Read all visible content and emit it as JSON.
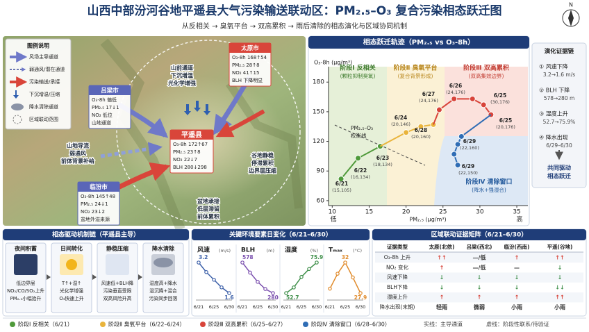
{
  "header": {
    "title": "山西中部汾河谷地平遥县大气污染输送联动区：PM₂.₅–O₃ 复合污染相态跃迁图",
    "subtitle": "从反相关 → 臭氧平台 → 双高累积 → 雨后清除的相态演化与区域协同机制"
  },
  "map": {
    "legend_title": "图例说明",
    "legend": [
      "风场主导通道",
      "弱通风/潜在通道",
      "污染输送/承接",
      "下沉增温/压缩",
      "降水清除通道",
      "区域联动范围"
    ],
    "cities": [
      {
        "name": "太原市",
        "lines": [
          "O₃-8h 168↑54",
          "PM₂.₅ 28↑8",
          "NO₂ 41↑15",
          "BLH 下降明显"
        ]
      },
      {
        "name": "吕梁市",
        "lines": [
          "O₃-8h 偏低",
          "PM₂.₅ 17↓1",
          "NO₂ 低位",
          "山地通道"
        ]
      },
      {
        "name": "平遥县",
        "lines": [
          "O₃-8h 172↑67",
          "PM₂.₅ 23↑8",
          "NO₂ 22↓7",
          "BLH 280↓298"
        ]
      },
      {
        "name": "临汾市",
        "lines": [
          "O₃-8h 145↑48",
          "PM₂.₅ 24↓1",
          "NO₂ 23↓2",
          "盆地外溢来源"
        ]
      }
    ],
    "notes": [
      [
        "山前通道",
        "下沉增温",
        "光化学增强"
      ],
      [
        "山地导流",
        "弱通风",
        "前体背景补给"
      ],
      [
        "谷地静稳",
        "停滞累积",
        "边界层压缩"
      ],
      [
        "盆地承接",
        "低层滞留",
        "前体累积"
      ]
    ],
    "compass": "N"
  },
  "chart_data": [
    {
      "type": "scatter",
      "title": "相态跃迁轨迹（PM₂.₅ vs O₃-8h）",
      "x_label": "PM₂.₅ (μg/m³)",
      "y_label": "O₃-8h (μg/m³)",
      "x_low": "低",
      "x_high": "高",
      "xlim": [
        9.5,
        36.5
      ],
      "xticks": [
        10,
        15,
        20,
        25,
        30,
        35
      ],
      "ylim": [
        55,
        190
      ],
      "yticks": [
        60,
        90,
        120,
        150,
        180
      ],
      "series": [
        {
          "name": "阶段Ⅰ 反相关（6/21）",
          "color": "#4f9a3a",
          "x": [
            11.2,
            13.5,
            16.5
          ],
          "values": [
            82,
            103,
            115
          ]
        },
        {
          "name": "阶段Ⅱ 臭氧平台（6/22–6/24）",
          "color": "#e9b43c",
          "x": [
            20,
            22,
            23.7
          ],
          "values": [
            129,
            135,
            137
          ]
        },
        {
          "name": "阶段Ⅲ 双高累积（6/25–6/27）",
          "color": "#d8443a",
          "x": [
            24.5,
            26.5,
            29,
            30.5,
            31.5
          ],
          "values": [
            152,
            163,
            163,
            157,
            147
          ]
        },
        {
          "name": "阶段Ⅳ 清除窗口（6/28–6/30）",
          "color": "#2f6db5",
          "x": [
            27.5,
            27,
            26.5,
            27
          ],
          "values": [
            125,
            117,
            107,
            96
          ]
        }
      ],
      "phases": [
        {
          "title": "阶段Ⅰ 反相关",
          "note": "(颗粒抑制臭氧)"
        },
        {
          "title": "阶段Ⅱ 臭氧平台",
          "note": "(复合背景形成)"
        },
        {
          "title": "阶段Ⅲ 双高累积",
          "note": "(双高集效边界)"
        },
        {
          "title": "阶段Ⅳ 清除窗口",
          "note": "(降水+强湿合)"
        }
      ],
      "tradeoff_label": [
        "PM₂.₅–O₃",
        "权衡线"
      ],
      "annotations": [
        {
          "date": "6/21",
          "coords": "(15,105)"
        },
        {
          "date": "6/22",
          "coords": "(16,134)"
        },
        {
          "date": "6/23",
          "coords": "(18,134)"
        },
        {
          "date": "6/24",
          "coords": "(20,146)"
        },
        {
          "date": "6/27",
          "coords": "(24,176)"
        },
        {
          "date": "6/28",
          "coords": "(20,160)"
        },
        {
          "date": "6/26",
          "coords": "(24,176)"
        },
        {
          "date": "6/25",
          "coords": "(30,176)"
        },
        {
          "date": "6/25",
          "coords": "(20,176)"
        },
        {
          "date": "6/29",
          "coords": "(22,160)"
        },
        {
          "date": "6/29",
          "coords": "(22,150)"
        }
      ]
    },
    {
      "type": "line",
      "title": "风速",
      "unit": "(m/s)",
      "color": "#3b5fa8",
      "categories": [
        "6/21",
        null,
        "6/25",
        null,
        "6/30"
      ],
      "values": [
        3.2,
        2.7,
        2.3,
        1.9,
        1.6
      ]
    },
    {
      "type": "line",
      "title": "BLH",
      "unit": "(m)",
      "color": "#7a4fae",
      "categories": [
        "6/21",
        null,
        "6/25",
        null,
        "6/30"
      ],
      "values": [
        578,
        480,
        390,
        320,
        280
      ]
    },
    {
      "type": "line",
      "title": "湿度",
      "unit": "(%)",
      "color": "#3f8f4a",
      "categories": [
        "6/21",
        null,
        "6/25",
        null,
        "6/30"
      ],
      "values": [
        52.7,
        57,
        65,
        71,
        75.9
      ]
    },
    {
      "type": "line",
      "title": "Tₘₐₓ",
      "unit": "(°C)",
      "color": "#e08a2a",
      "categories": [
        "6/21",
        null,
        "6/25",
        null,
        "6/30"
      ],
      "values": [
        28.5,
        30.5,
        32,
        30,
        27.9
      ]
    }
  ],
  "evidence": {
    "title": "演化证据链",
    "steps": [
      {
        "label": "① 风速下降",
        "detail": "3.2→1.6 m/s"
      },
      {
        "label": "② BLH 下降",
        "detail": "578→280 m"
      },
      {
        "label": "③ 湿度上升",
        "detail": "52.7→75.9%"
      },
      {
        "label": "④ 降水出现",
        "detail": "6/29–6/30"
      }
    ],
    "conclusion": [
      "共同驱动",
      "相态跃迁"
    ]
  },
  "mechanism": {
    "title": "相态驱动机制链（平遥县主导）",
    "steps": [
      {
        "title": "夜间积蓄",
        "lines": [
          "低边界层",
          "NO₂/CO/SO₂上升",
          "PM₂.₅小幅抬升"
        ]
      },
      {
        "title": "日间转化",
        "lines": [
          "T↑+湿↑",
          "光化学增强",
          "O₃快速上升"
        ]
      },
      {
        "title": "静稳压缩",
        "lines": [
          "风速低+BLH降",
          "污染垂直受限",
          "双高风险升高"
        ]
      },
      {
        "title": "降水清除",
        "lines": [
          "湿度高+降水",
          "湿沉降+混合",
          "污染同步回落"
        ]
      }
    ]
  },
  "env": {
    "title": "关键环境要素日变化（6/21–6/30）"
  },
  "matrix": {
    "title": "区域联动证据矩阵（6/21–6/30）",
    "header": [
      "证据类型",
      "太原(北依)",
      "吕梁(西北)",
      "临汾(西南)",
      "平遥(谷地)"
    ],
    "rows": [
      [
        "O₃-8h 上升",
        "↑↑",
        "—/低",
        "↑",
        "↑↑"
      ],
      [
        "NO₂ 变化",
        "↑",
        "—/低",
        "—",
        "↓"
      ],
      [
        "风速下降",
        "↓",
        "↓",
        "↓",
        "↓"
      ],
      [
        "BLH下降",
        "↓",
        "↓",
        "↓",
        "↓↓"
      ],
      [
        "湿度上升",
        "↑",
        "↑",
        "↑",
        "↑↑"
      ],
      [
        "降水出现(末期)",
        "轻雨",
        "微弱",
        "小雨",
        "小雨"
      ]
    ]
  },
  "footer": {
    "solid": "实线：主导通道",
    "dashed": "虚线：阶段性联系/待验证"
  }
}
